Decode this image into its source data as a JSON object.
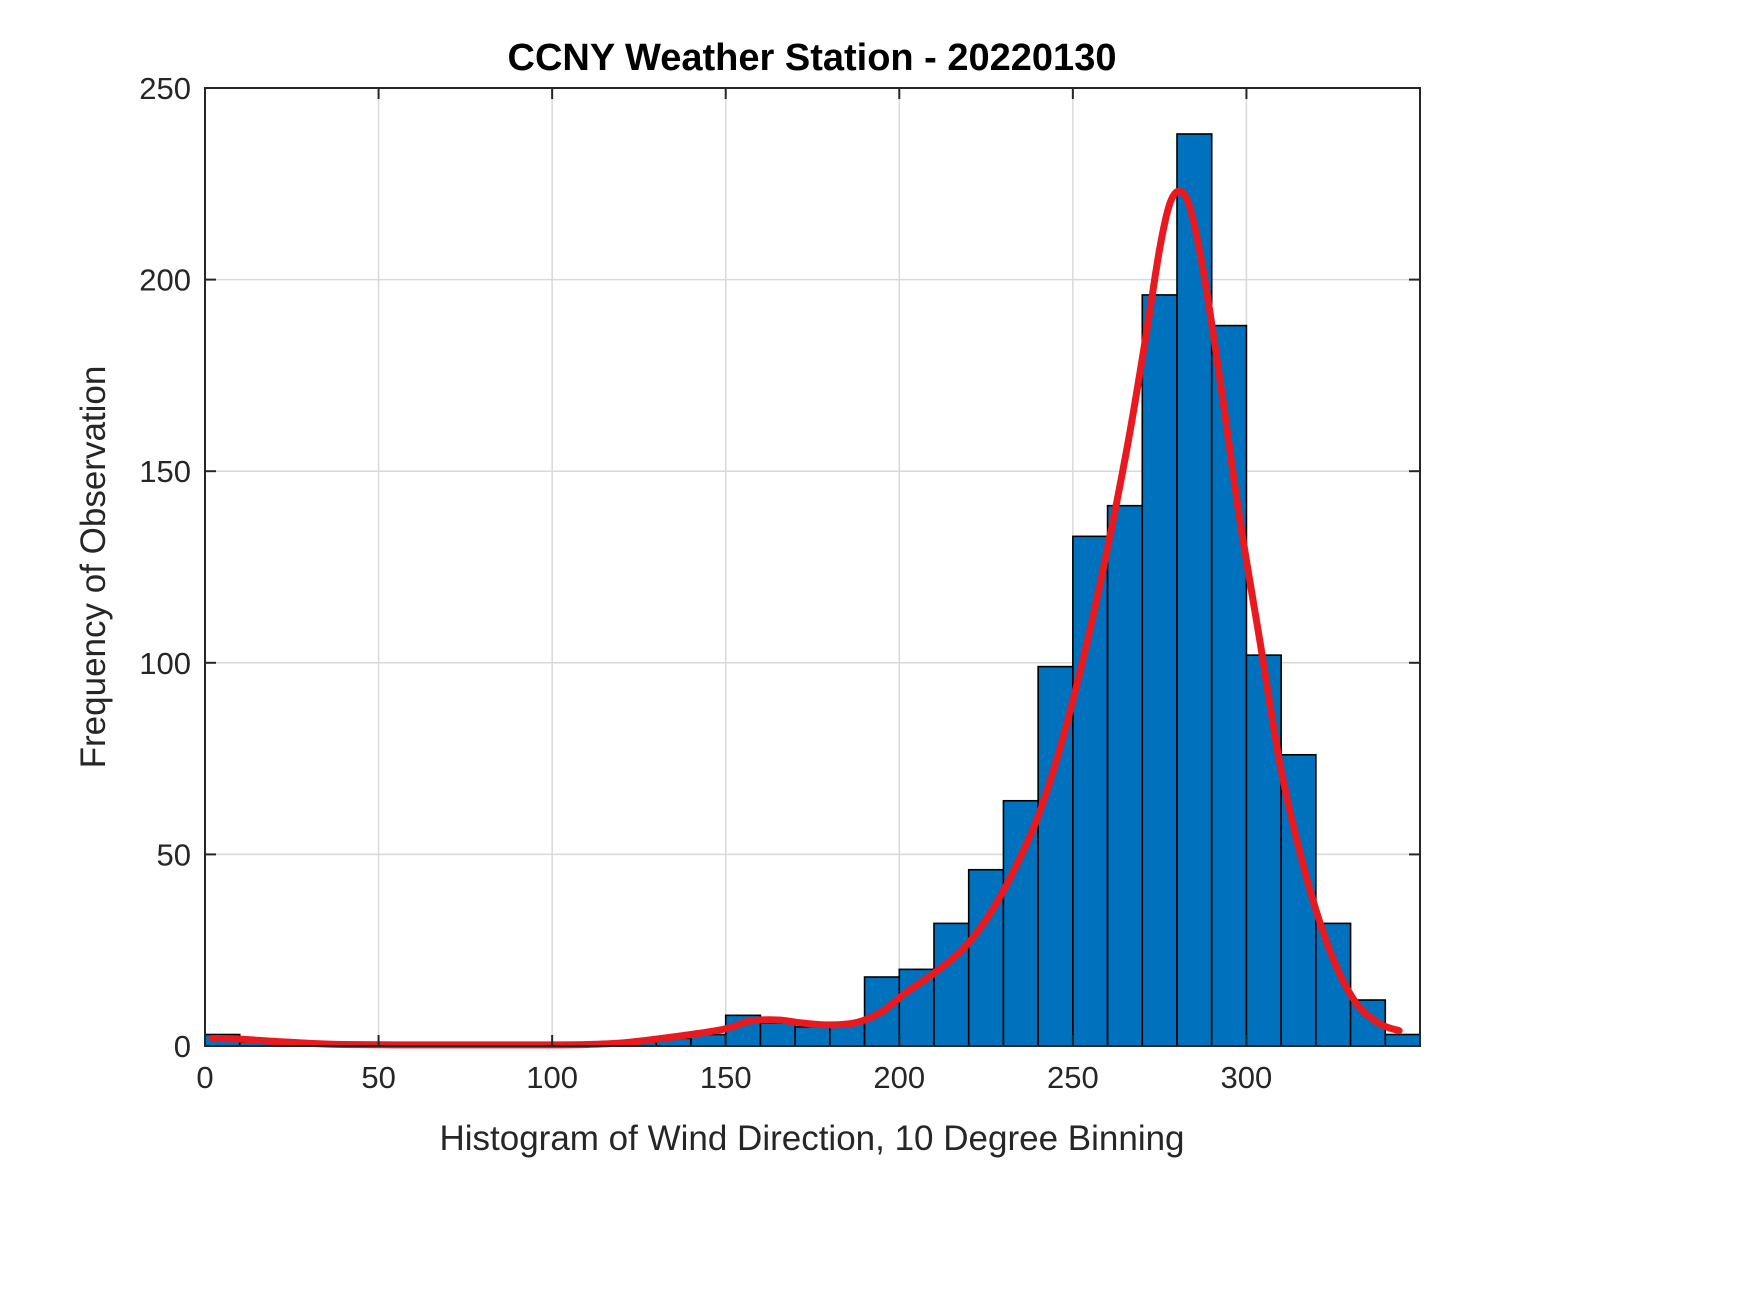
{
  "chart_data": {
    "type": "bar",
    "title": "CCNY Weather Station - 20220130",
    "xlabel": "Histogram of Wind Direction, 10 Degree Binning",
    "ylabel": "Frequency of Observation",
    "xlim": [
      0,
      350
    ],
    "ylim": [
      0,
      250
    ],
    "x_ticks": [
      0,
      50,
      100,
      150,
      200,
      250,
      300
    ],
    "y_ticks": [
      0,
      50,
      100,
      150,
      200,
      250
    ],
    "grid": true,
    "bin_start": 0,
    "bin_width": 10,
    "bar_color": "#0072BD",
    "bar_edge_color": "#000000",
    "grid_color": "#d9d9d9",
    "axis_color": "#262626",
    "fit_line_color": "#E8191F",
    "categories_note": "histogram bins of wind direction in degrees, 10-degree width starting at 0",
    "values": [
      3,
      1,
      0,
      0,
      0,
      0,
      0,
      0,
      0,
      0,
      0,
      0,
      1,
      2,
      3,
      8,
      6,
      5,
      6,
      18,
      20,
      32,
      46,
      64,
      99,
      133,
      141,
      196,
      238,
      188,
      102,
      76,
      32,
      12,
      3
    ],
    "fit_curve": {
      "name": "kernel-fit-line",
      "x": [
        2,
        10,
        20,
        30,
        40,
        55,
        70,
        85,
        100,
        110,
        120,
        130,
        140,
        150,
        157,
        165,
        172,
        180,
        188,
        195,
        202,
        210,
        218,
        225,
        232,
        240,
        247,
        254,
        260,
        266,
        271,
        275,
        278,
        281,
        284,
        288,
        293,
        298,
        304,
        310,
        317,
        324,
        331,
        338,
        344
      ],
      "y": [
        2,
        1.8,
        1.2,
        0.7,
        0.4,
        0.3,
        0.3,
        0.3,
        0.3,
        0.4,
        0.8,
        1.8,
        3,
        4.5,
        6.5,
        6.8,
        6,
        5.5,
        6.2,
        9,
        14,
        19,
        25,
        33,
        44,
        60,
        80,
        105,
        130,
        158,
        185,
        208,
        220,
        223,
        218,
        200,
        170,
        138,
        105,
        72,
        45,
        25,
        12,
        6,
        4
      ]
    },
    "legend": null
  }
}
